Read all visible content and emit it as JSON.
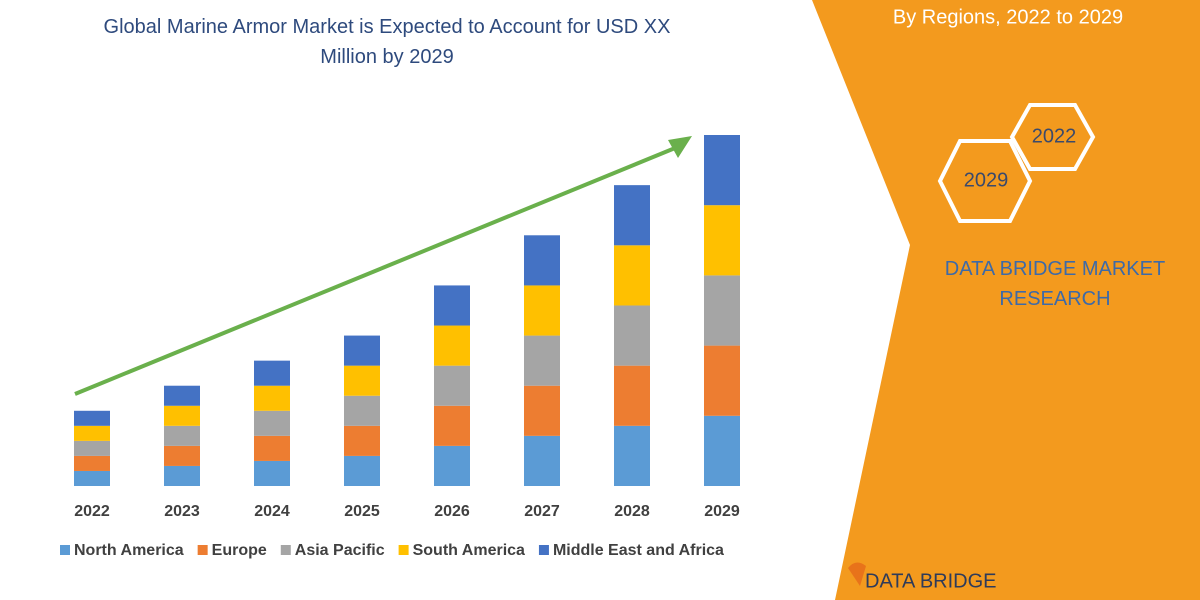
{
  "chart_data": {
    "type": "stacked_bar",
    "title": "Global Marine Armor Market is Expected to Account for USD XX Million by 2029",
    "categories": [
      "2022",
      "2023",
      "2024",
      "2025",
      "2026",
      "2027",
      "2028",
      "2029"
    ],
    "series": [
      {
        "name": "North America",
        "color": "#5b9bd5",
        "values": [
          15,
          20,
          25,
          30,
          40,
          50,
          60,
          70
        ]
      },
      {
        "name": "Europe",
        "color": "#ed7d31",
        "values": [
          15,
          20,
          25,
          30,
          40,
          50,
          60,
          70
        ]
      },
      {
        "name": "Asia Pacific",
        "color": "#a5a5a5",
        "values": [
          15,
          20,
          25,
          30,
          40,
          50,
          60,
          70
        ]
      },
      {
        "name": "South America",
        "color": "#ffc000",
        "values": [
          15,
          20,
          25,
          30,
          40,
          50,
          60,
          70
        ]
      },
      {
        "name": "Middle East and Africa",
        "color": "#4472c4",
        "values": [
          15,
          20,
          25,
          30,
          40,
          50,
          60,
          70
        ]
      }
    ],
    "ylim": [
      0,
      350
    ],
    "legend": "bottom"
  },
  "panel": {
    "subtitle": "By Regions, 2022 to 2029",
    "hexagons": [
      "2022",
      "2029"
    ],
    "brand": "DATA BRIDGE MARKET RESEARCH",
    "logo": "DATA BRIDGE"
  }
}
